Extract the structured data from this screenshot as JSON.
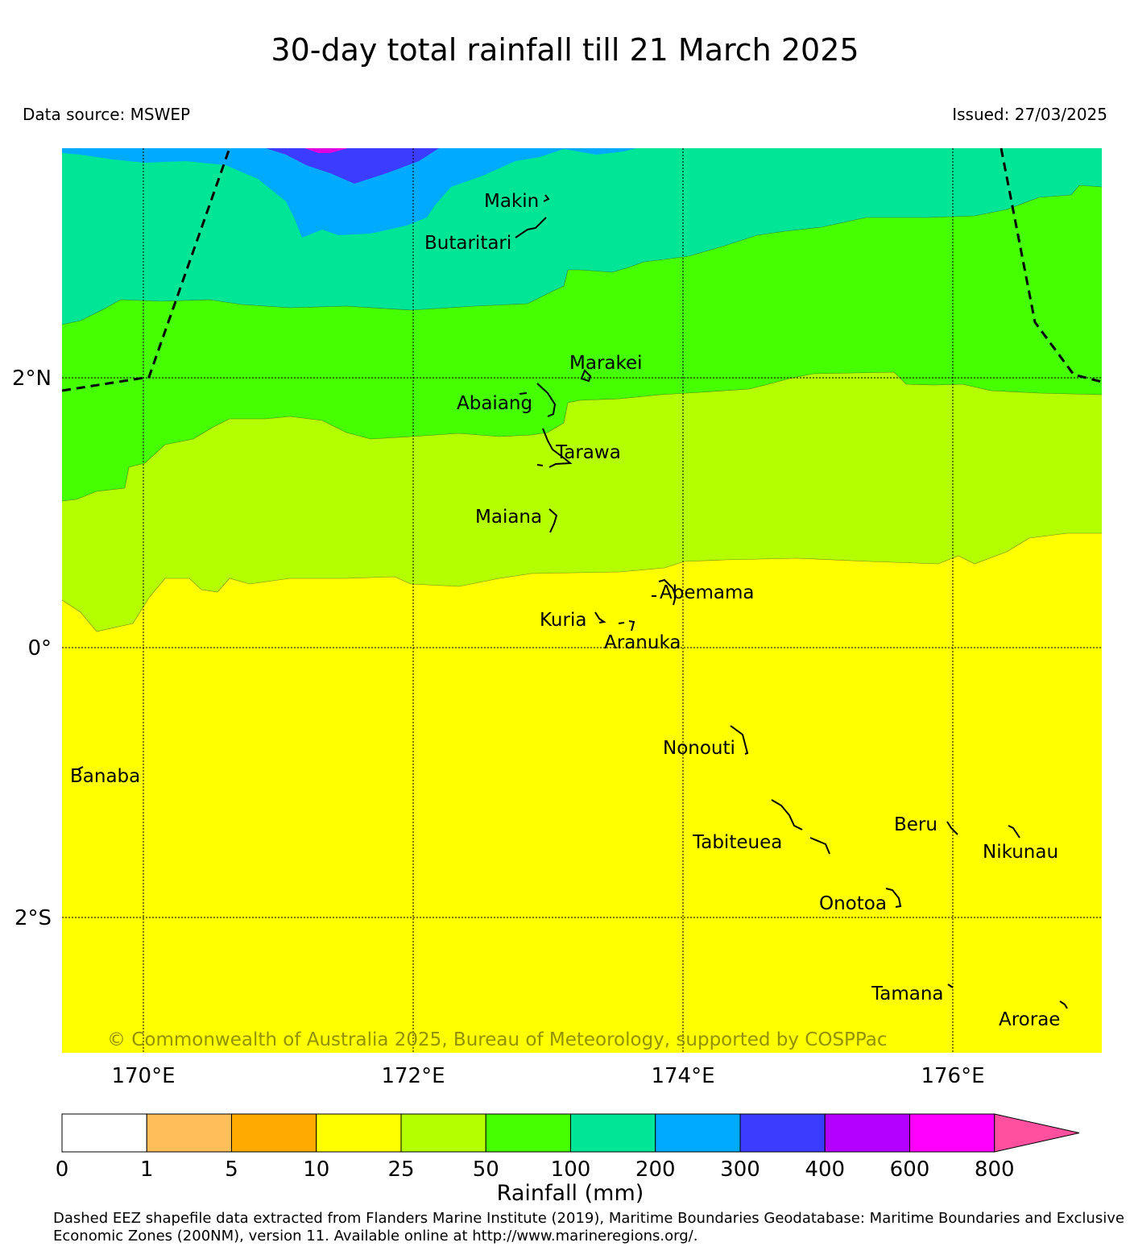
{
  "title": "30-day total rainfall till 21 March 2025",
  "data_source": "Data source: MSWEP",
  "issued": "Issued: 27/03/2025",
  "copyright": "© Commonwealth of Australia 2025, Bureau of Meteorology, supported by COSPPac",
  "axes": {
    "lon_ticks": [
      "170°E",
      "172°E",
      "174°E",
      "176°E"
    ],
    "lat_ticks": [
      "2°N",
      "0°",
      "2°S"
    ]
  },
  "places": [
    {
      "name": "Makin"
    },
    {
      "name": "Butaritari"
    },
    {
      "name": "Marakei"
    },
    {
      "name": "Abaiang"
    },
    {
      "name": "Tarawa"
    },
    {
      "name": "Maiana"
    },
    {
      "name": "Abemama"
    },
    {
      "name": "Kuria"
    },
    {
      "name": "Aranuka"
    },
    {
      "name": "Nonouti"
    },
    {
      "name": "Banaba"
    },
    {
      "name": "Beru"
    },
    {
      "name": "Tabiteuea"
    },
    {
      "name": "Nikunau"
    },
    {
      "name": "Onotoa"
    },
    {
      "name": "Tamana"
    },
    {
      "name": "Arorae"
    }
  ],
  "colorbar": {
    "label": "Rainfall (mm)",
    "ticks": [
      "0",
      "1",
      "5",
      "10",
      "25",
      "50",
      "100",
      "200",
      "300",
      "400",
      "600",
      "800"
    ],
    "colors": [
      "#ffffff",
      "#ffbe5a",
      "#ffaa00",
      "#ffff00",
      "#b4ff00",
      "#46ff00",
      "#00e696",
      "#00aaff",
      "#3c3cff",
      "#b400ff",
      "#ff00ff",
      "#ff50a0"
    ]
  },
  "footnote": "Dashed EEZ shapefile data extracted from Flanders Marine Institute (2019), Maritime Boundaries Geodatabase: Maritime Boundaries and Exclusive Economic Zones (200NM), version 11. Available online at http://www.marineregions.org/."
}
